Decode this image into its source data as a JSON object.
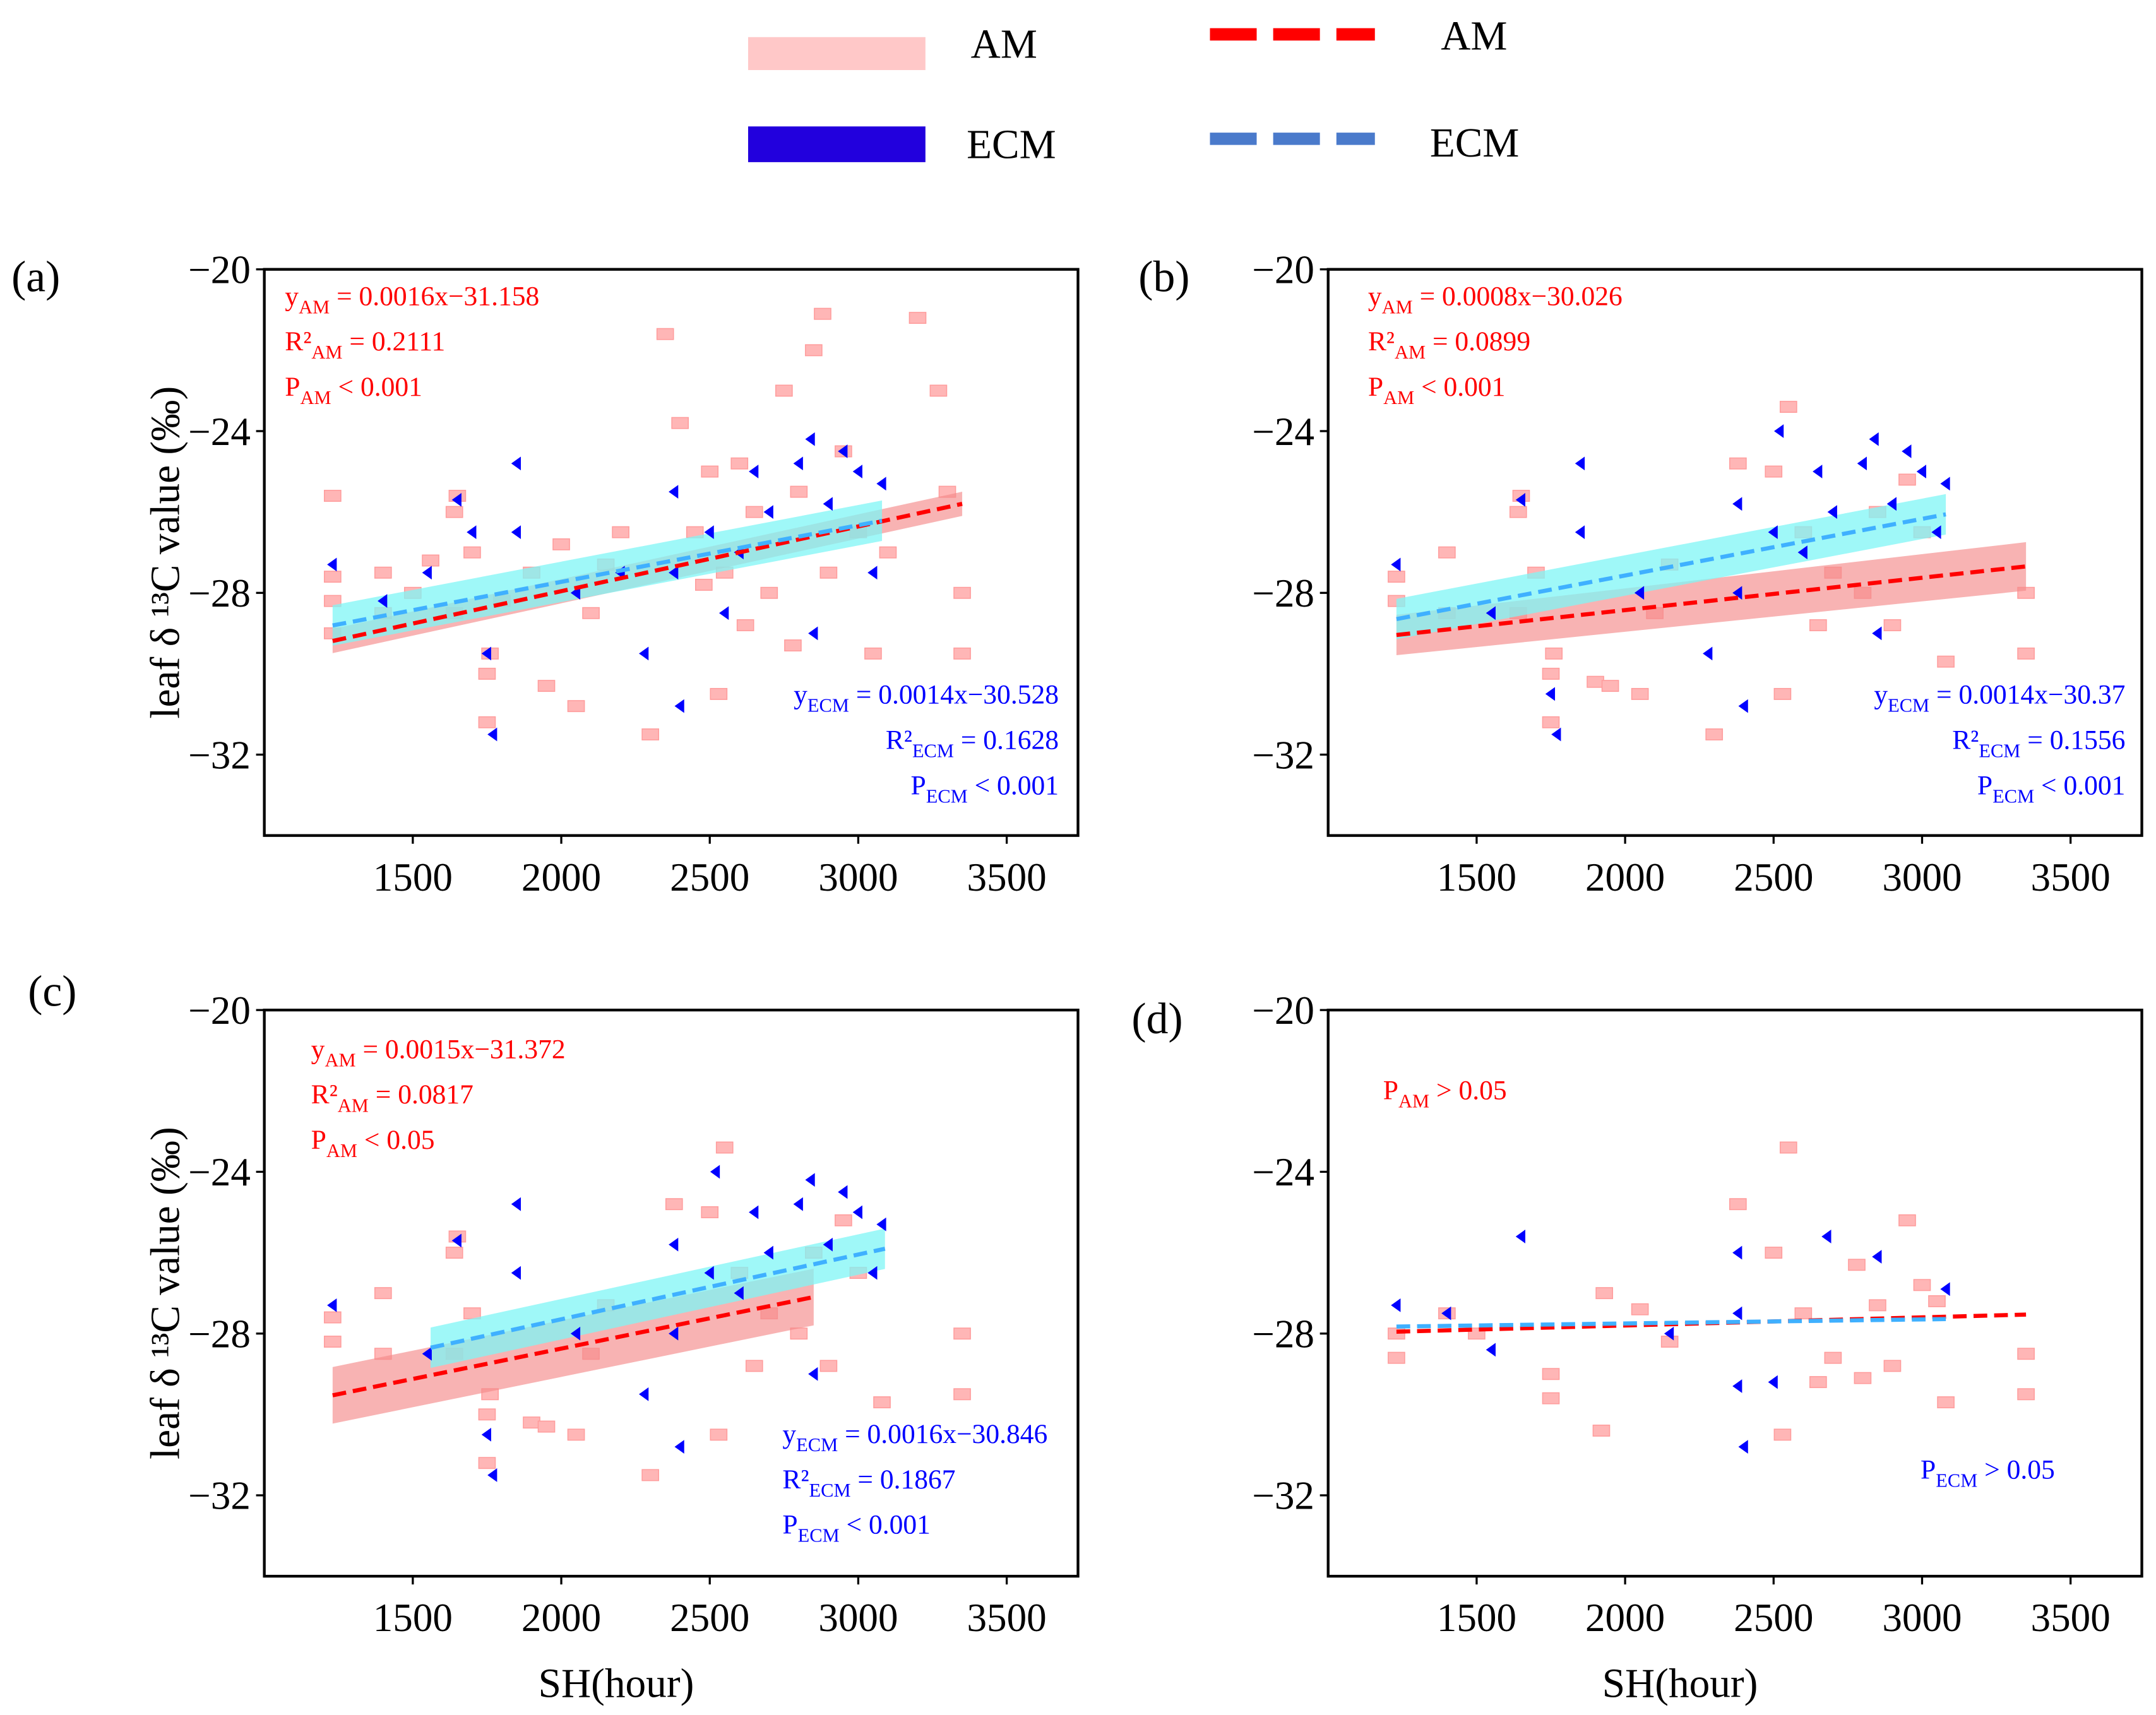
{
  "legend": {
    "band_am": "AM",
    "band_ecm": "ECM",
    "line_am": "AM",
    "line_ecm": "ECM"
  },
  "colors": {
    "am_points": "#ffb6b6",
    "am_band": "#f48a8a",
    "am_line": "#ff0000",
    "ecm_points": "#0000ff",
    "ecm_band": "#7ff6f6",
    "ecm_line": "#3fb0ff",
    "legend_ecm_patch": "#2200dd",
    "legend_ecm_dash": "#4a7acb",
    "am_text": "#ff0000",
    "ecm_text": "#0000ff"
  },
  "chart_data": [
    {
      "type": "scatter",
      "panel_label": "(a)",
      "xlabel": "",
      "ylabel": "leaf δ ¹³C value (‰)",
      "xlim": [
        1000,
        3740
      ],
      "ylim": [
        -34,
        -20
      ],
      "xticks": [
        "1500",
        "2000",
        "2500",
        "3000",
        "3500"
      ],
      "yticks": [
        "−20",
        "−24",
        "−28",
        "−32"
      ],
      "fits": [
        {
          "name": "AM",
          "slope": 0.0016,
          "intercept": -31.158,
          "x_range": [
            1230,
            3350
          ],
          "ci": [
            0.3,
            0.3
          ]
        },
        {
          "name": "ECM",
          "slope": 0.0014,
          "intercept": -30.528,
          "x_range": [
            1230,
            3080
          ],
          "ci": [
            0.5,
            0.5
          ]
        }
      ],
      "annotations_am": [
        {
          "main": "y",
          "sub": "AM",
          "rest": " = 0.0016x−31.158"
        },
        {
          "main": "R²",
          "sub": "AM",
          "rest": " = 0.2111"
        },
        {
          "main": "P",
          "sub": "AM",
          "rest": " < 0.001"
        }
      ],
      "annotations_ecm": [
        {
          "main": "y",
          "sub": "ECM",
          "rest": " = 0.0014x−30.528"
        },
        {
          "main": "R²",
          "sub": "ECM",
          "rest": " = 0.1628"
        },
        {
          "main": "P",
          "sub": "ECM",
          "rest": " < 0.001"
        }
      ],
      "ecm_align": "right",
      "set": "full"
    },
    {
      "type": "scatter",
      "panel_label": "(b)",
      "xlabel": "",
      "ylabel": "",
      "xlim": [
        1000,
        3740
      ],
      "ylim": [
        -34,
        -20
      ],
      "xticks": [
        "1500",
        "2000",
        "2500",
        "3000",
        "3500"
      ],
      "yticks": [
        "−20",
        "−24",
        "−28",
        "−32"
      ],
      "fits": [
        {
          "name": "AM",
          "slope": 0.0008,
          "intercept": -30.026,
          "x_range": [
            1230,
            3350
          ],
          "ci": [
            0.5,
            0.6
          ]
        },
        {
          "name": "ECM",
          "slope": 0.0014,
          "intercept": -30.37,
          "x_range": [
            1230,
            3080
          ],
          "ci": [
            0.5,
            0.5
          ]
        }
      ],
      "annotations_am": [
        {
          "main": "y",
          "sub": "AM",
          "rest": " = 0.0008x−30.026"
        },
        {
          "main": "R²",
          "sub": "AM",
          "rest": " = 0.0899"
        },
        {
          "main": "P",
          "sub": "AM",
          "rest": " < 0.001"
        }
      ],
      "annotations_ecm": [
        {
          "main": "y",
          "sub": "ECM",
          "rest": " = 0.0014x−30.37"
        },
        {
          "main": "R²",
          "sub": "ECM",
          "rest": " = 0.1556"
        },
        {
          "main": "P",
          "sub": "ECM",
          "rest": " < 0.001"
        }
      ],
      "ecm_align": "right",
      "set": "sparse"
    },
    {
      "type": "scatter",
      "panel_label": "(c)",
      "xlabel": "SH(hour)",
      "ylabel": "leaf δ ¹³C value (‰)",
      "xlim": [
        1000,
        3740
      ],
      "ylim": [
        -34,
        -20
      ],
      "xticks": [
        "1500",
        "2000",
        "2500",
        "3000",
        "3500"
      ],
      "yticks": [
        "−20",
        "−24",
        "−28",
        "−32"
      ],
      "fits": [
        {
          "name": "AM",
          "slope": 0.0015,
          "intercept": -31.372,
          "x_range": [
            1230,
            2850
          ],
          "ci": [
            0.7,
            0.7
          ]
        },
        {
          "name": "ECM",
          "slope": 0.0016,
          "intercept": -30.846,
          "x_range": [
            1560,
            3090
          ],
          "ci": [
            0.5,
            0.5
          ]
        }
      ],
      "annotations_am": [
        {
          "main": "y",
          "sub": "AM",
          "rest": " = 0.0015x−31.372"
        },
        {
          "main": "R²",
          "sub": "AM",
          "rest": " = 0.0817"
        },
        {
          "main": "P",
          "sub": "AM",
          "rest": " < 0.05"
        }
      ],
      "annotations_ecm": [
        {
          "main": "y",
          "sub": "ECM",
          "rest": " = 0.0016x−30.846"
        },
        {
          "main": "R²",
          "sub": "ECM",
          "rest": " = 0.1867"
        },
        {
          "main": "P",
          "sub": "ECM",
          "rest": " < 0.001"
        }
      ],
      "ecm_align": "left",
      "set": "sparse"
    },
    {
      "type": "scatter",
      "panel_label": "(d)",
      "xlabel": "SH(hour)",
      "ylabel": "",
      "xlim": [
        1000,
        3740
      ],
      "ylim": [
        -34,
        -20
      ],
      "xticks": [
        "1500",
        "2000",
        "2500",
        "3000",
        "3500"
      ],
      "yticks": [
        "−20",
        "−24",
        "−28",
        "−32"
      ],
      "fits": [
        {
          "name": "AM",
          "slope": 0.0002,
          "intercept": -28.2,
          "x_range": [
            1230,
            3350
          ],
          "ci": [
            0,
            0
          ]
        },
        {
          "name": "ECM",
          "slope": 0.0001,
          "intercept": -27.95,
          "x_range": [
            1230,
            3080
          ],
          "ci": [
            0,
            0
          ]
        }
      ],
      "annotations_am": [
        {
          "main": "P",
          "sub": "AM",
          "rest": " > 0.05"
        }
      ],
      "annotations_ecm": [
        {
          "main": "P",
          "sub": "ECM",
          "rest": " > 0.05"
        }
      ],
      "ecm_align": "left",
      "set": "d"
    }
  ],
  "points": {
    "full": {
      "AM": [
        [
          1230,
          -28.2
        ],
        [
          1230,
          -25.6
        ],
        [
          1230,
          -29.0
        ],
        [
          1230,
          -27.6
        ],
        [
          1400,
          -28.5
        ],
        [
          1400,
          -27.5
        ],
        [
          1500,
          -28.0
        ],
        [
          1560,
          -27.2
        ],
        [
          1640,
          -26.0
        ],
        [
          1640,
          -28.5
        ],
        [
          1650,
          -25.6
        ],
        [
          1700,
          -27.0
        ],
        [
          1750,
          -30.0
        ],
        [
          1750,
          -31.2
        ],
        [
          1760,
          -29.5
        ],
        [
          1800,
          -28.2
        ],
        [
          1900,
          -27.5
        ],
        [
          1950,
          -30.3
        ],
        [
          2000,
          -26.8
        ],
        [
          2050,
          -30.8
        ],
        [
          2100,
          -28.5
        ],
        [
          2150,
          -27.3
        ],
        [
          2200,
          -26.5
        ],
        [
          2300,
          -31.5
        ],
        [
          2350,
          -21.6
        ],
        [
          2400,
          -23.8
        ],
        [
          2450,
          -26.5
        ],
        [
          2480,
          -27.8
        ],
        [
          2500,
          -25.0
        ],
        [
          2530,
          -30.5
        ],
        [
          2550,
          -27.5
        ],
        [
          2600,
          -24.8
        ],
        [
          2620,
          -28.8
        ],
        [
          2650,
          -26.0
        ],
        [
          2700,
          -28.0
        ],
        [
          2750,
          -23.0
        ],
        [
          2780,
          -29.3
        ],
        [
          2800,
          -25.5
        ],
        [
          2850,
          -22.0
        ],
        [
          2880,
          -21.1
        ],
        [
          2900,
          -27.5
        ],
        [
          2950,
          -24.5
        ],
        [
          3000,
          -26.5
        ],
        [
          3050,
          -29.5
        ],
        [
          3100,
          -27.0
        ],
        [
          3200,
          -21.2
        ],
        [
          3270,
          -23.0
        ],
        [
          3300,
          -25.5
        ],
        [
          3350,
          -28.0
        ],
        [
          3350,
          -29.5
        ]
      ],
      "ECM": [
        [
          1230,
          -27.3
        ],
        [
          1400,
          -28.2
        ],
        [
          1550,
          -27.5
        ],
        [
          1650,
          -25.7
        ],
        [
          1700,
          -26.5
        ],
        [
          1750,
          -29.5
        ],
        [
          1770,
          -31.5
        ],
        [
          1850,
          -24.8
        ],
        [
          1850,
          -26.5
        ],
        [
          2050,
          -28.0
        ],
        [
          2200,
          -27.5
        ],
        [
          2280,
          -29.5
        ],
        [
          2380,
          -25.5
        ],
        [
          2380,
          -27.5
        ],
        [
          2400,
          -30.8
        ],
        [
          2500,
          -26.5
        ],
        [
          2550,
          -28.5
        ],
        [
          2600,
          -27.0
        ],
        [
          2650,
          -25.0
        ],
        [
          2700,
          -26.0
        ],
        [
          2800,
          -24.8
        ],
        [
          2840,
          -24.2
        ],
        [
          2850,
          -29.0
        ],
        [
          2900,
          -25.8
        ],
        [
          2950,
          -24.5
        ],
        [
          3000,
          -25.0
        ],
        [
          3050,
          -27.5
        ],
        [
          3080,
          -25.3
        ]
      ]
    },
    "sparse": {
      "AM": [
        [
          1230,
          -28.2
        ],
        [
          1230,
          -27.6
        ],
        [
          1400,
          -27.0
        ],
        [
          1400,
          -28.5
        ],
        [
          1640,
          -26.0
        ],
        [
          1640,
          -28.5
        ],
        [
          1650,
          -25.6
        ],
        [
          1700,
          -27.5
        ],
        [
          1750,
          -30.0
        ],
        [
          1750,
          -31.2
        ],
        [
          1760,
          -29.5
        ],
        [
          1900,
          -30.2
        ],
        [
          1950,
          -30.3
        ],
        [
          2050,
          -30.5
        ],
        [
          2100,
          -28.5
        ],
        [
          2150,
          -27.3
        ],
        [
          2300,
          -31.5
        ],
        [
          2380,
          -24.8
        ],
        [
          2500,
          -25.0
        ],
        [
          2530,
          -30.5
        ],
        [
          2550,
          -23.4
        ],
        [
          2600,
          -26.5
        ],
        [
          2650,
          -28.8
        ],
        [
          2700,
          -27.5
        ],
        [
          2800,
          -28.0
        ],
        [
          2850,
          -26.0
        ],
        [
          2900,
          -28.8
        ],
        [
          2950,
          -25.2
        ],
        [
          3000,
          -26.5
        ],
        [
          3080,
          -29.7
        ],
        [
          3350,
          -28.0
        ],
        [
          3350,
          -29.5
        ]
      ],
      "ECM": [
        [
          1230,
          -27.3
        ],
        [
          1550,
          -28.5
        ],
        [
          1650,
          -25.7
        ],
        [
          1750,
          -30.5
        ],
        [
          1770,
          -31.5
        ],
        [
          1850,
          -24.8
        ],
        [
          1850,
          -26.5
        ],
        [
          2050,
          -28.0
        ],
        [
          2280,
          -29.5
        ],
        [
          2380,
          -25.8
        ],
        [
          2380,
          -28.0
        ],
        [
          2400,
          -30.8
        ],
        [
          2500,
          -26.5
        ],
        [
          2520,
          -24.0
        ],
        [
          2600,
          -27.0
        ],
        [
          2650,
          -25.0
        ],
        [
          2700,
          -26.0
        ],
        [
          2800,
          -24.8
        ],
        [
          2840,
          -24.2
        ],
        [
          2850,
          -29.0
        ],
        [
          2900,
          -25.8
        ],
        [
          2950,
          -24.5
        ],
        [
          3000,
          -25.0
        ],
        [
          3050,
          -26.5
        ],
        [
          3080,
          -25.3
        ]
      ]
    },
    "d": {
      "AM": [
        [
          1230,
          -28.0
        ],
        [
          1230,
          -28.6
        ],
        [
          1400,
          -27.5
        ],
        [
          1500,
          -28.0
        ],
        [
          1750,
          -29.0
        ],
        [
          1750,
          -29.6
        ],
        [
          1920,
          -30.4
        ],
        [
          1930,
          -27.0
        ],
        [
          2050,
          -27.4
        ],
        [
          2150,
          -28.2
        ],
        [
          2380,
          -24.8
        ],
        [
          2500,
          -26.0
        ],
        [
          2530,
          -30.5
        ],
        [
          2550,
          -23.4
        ],
        [
          2600,
          -27.5
        ],
        [
          2650,
          -29.2
        ],
        [
          2700,
          -28.6
        ],
        [
          2780,
          -26.3
        ],
        [
          2800,
          -29.1
        ],
        [
          2850,
          -27.3
        ],
        [
          2900,
          -28.8
        ],
        [
          2950,
          -25.2
        ],
        [
          3000,
          -26.8
        ],
        [
          3050,
          -27.2
        ],
        [
          3080,
          -29.7
        ],
        [
          3350,
          -28.5
        ],
        [
          3350,
          -29.5
        ]
      ],
      "ECM": [
        [
          1230,
          -27.3
        ],
        [
          1400,
          -27.5
        ],
        [
          1550,
          -28.4
        ],
        [
          1650,
          -25.6
        ],
        [
          2150,
          -28.0
        ],
        [
          2380,
          -26.0
        ],
        [
          2380,
          -27.5
        ],
        [
          2380,
          -29.3
        ],
        [
          2400,
          -30.8
        ],
        [
          2500,
          -29.2
        ],
        [
          2680,
          -25.6
        ],
        [
          2850,
          -26.1
        ],
        [
          3080,
          -26.9
        ]
      ]
    }
  }
}
